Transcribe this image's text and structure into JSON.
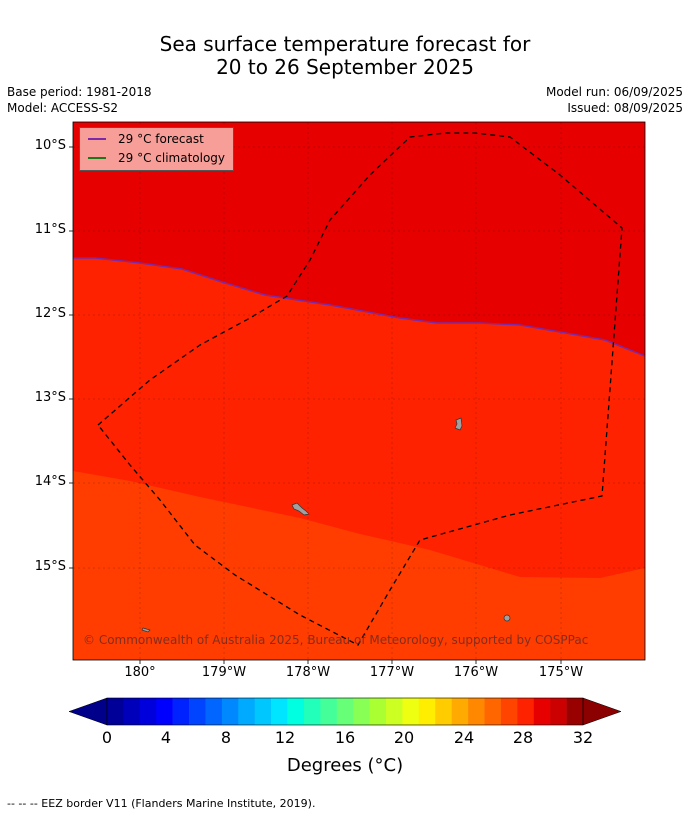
{
  "header": {
    "title_line1": "Sea surface temperature forecast for",
    "title_line2": "20 to 26 September 2025",
    "base_period": "Base period: 1981-2018",
    "model": "Model: ACCESS-S2",
    "model_run": "Model run: 06/09/2025",
    "issued": "Issued: 08/09/2025"
  },
  "map": {
    "lat_labels": [
      "10°S",
      "11°S",
      "12°S",
      "13°S",
      "14°S",
      "15°S"
    ],
    "lon_labels": [
      "180°",
      "179°W",
      "178°W",
      "177°W",
      "176°W",
      "175°W"
    ],
    "zones": [
      {
        "name": "above-29",
        "color": "#e60000"
      },
      {
        "name": "28-30",
        "color": "#ff2200"
      },
      {
        "name": "26-28",
        "color": "#ff3d00"
      }
    ],
    "forecast_isotherm_color": "#7a2aa8",
    "climatology_isotherm_color": "#1a7a1a",
    "eez_color": "#000000",
    "island_color": "#a0a0a0",
    "copyright": "© Commonwealth of Australia 2025, Bureau of Meteorology, supported by COSPPac"
  },
  "legend": {
    "forecast_label": "29 °C  forecast",
    "climatology_label": "29 °C  climatology"
  },
  "colorbar": {
    "ticks": [
      "0",
      "4",
      "8",
      "12",
      "16",
      "20",
      "24",
      "28",
      "32"
    ],
    "label": "Degrees (°C)",
    "colors": [
      "#000099",
      "#0000bb",
      "#0000dd",
      "#0000ff",
      "#0022ff",
      "#0044ff",
      "#0066ff",
      "#0088ff",
      "#00aaff",
      "#00c8ff",
      "#00e5ff",
      "#00ffe0",
      "#22ffbb",
      "#44ff99",
      "#66ff77",
      "#88ff55",
      "#aaff33",
      "#ccff22",
      "#eeff11",
      "#ffee00",
      "#ffcc00",
      "#ffaa00",
      "#ff8800",
      "#ff6600",
      "#ff4400",
      "#ff2200",
      "#e60000",
      "#cc0000",
      "#990000"
    ],
    "low_color": "#00008b",
    "high_color": "#8b0000"
  },
  "footnote": "--  --  -- EEZ border V11 (Flanders Marine Institute, 2019)."
}
